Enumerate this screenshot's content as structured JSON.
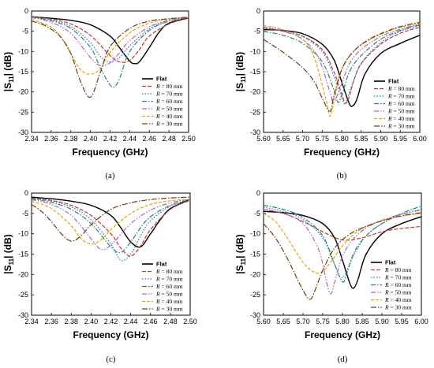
{
  "colors": {
    "Flat": "#000000",
    "R = 80 mm": "#c0392b",
    "R = 70 mm": "#2f6fd1",
    "R = 60 mm": "#1f8a6a",
    "R = 50 mm": "#b05fd6",
    "R = 40 mm": "#e0a800",
    "R = 30 mm": "#6b3e12"
  },
  "chart_data": [
    {
      "type": "line",
      "caption": "(a)",
      "xlabel": "Frequency (GHz)",
      "ylabel": "|S11| (dB)",
      "xlim": [
        2.34,
        2.5
      ],
      "ylim": [
        -30,
        0
      ],
      "xticks": [
        "2.34",
        "2.36",
        "2.38",
        "2.40",
        "2.42",
        "2.44",
        "2.46",
        "2.48",
        "2.50"
      ],
      "yticks": [
        "0",
        "-5",
        "-10",
        "-15",
        "-20",
        "-25",
        "-30"
      ],
      "legend_position": "right",
      "series": [
        {
          "name": "Flat",
          "x": [
            2.34,
            2.36,
            2.38,
            2.4,
            2.42,
            2.43,
            2.44,
            2.445,
            2.45,
            2.46,
            2.47,
            2.48,
            2.5
          ],
          "y": [
            -1.4,
            -1.8,
            -2.3,
            -3.4,
            -6.2,
            -9.2,
            -12.4,
            -13.0,
            -12.5,
            -9.0,
            -5.2,
            -3.0,
            -1.7
          ]
        },
        {
          "name": "R = 80 mm",
          "x": [
            2.34,
            2.36,
            2.38,
            2.4,
            2.42,
            2.43,
            2.44,
            2.45,
            2.46,
            2.48,
            2.5
          ],
          "y": [
            -1.4,
            -2.0,
            -3.2,
            -6.0,
            -11.0,
            -12.6,
            -12.2,
            -9.5,
            -6.2,
            -3.2,
            -1.8
          ]
        },
        {
          "name": "R = 70 mm",
          "x": [
            2.34,
            2.36,
            2.38,
            2.4,
            2.41,
            2.42,
            2.43,
            2.44,
            2.46,
            2.48,
            2.5
          ],
          "y": [
            -1.5,
            -2.2,
            -3.8,
            -7.8,
            -11.2,
            -12.6,
            -11.4,
            -8.6,
            -4.4,
            -2.4,
            -1.6
          ]
        },
        {
          "name": "R = 60 mm",
          "x": [
            2.34,
            2.36,
            2.38,
            2.4,
            2.41,
            2.42,
            2.425,
            2.43,
            2.44,
            2.46,
            2.48,
            2.5
          ],
          "y": [
            -1.5,
            -2.4,
            -4.3,
            -9.0,
            -14.0,
            -18.3,
            -18.6,
            -16.5,
            -10.0,
            -4.8,
            -2.5,
            -1.6
          ]
        },
        {
          "name": "R = 50 mm",
          "x": [
            2.34,
            2.36,
            2.38,
            2.4,
            2.41,
            2.42,
            2.43,
            2.44,
            2.46,
            2.48,
            2.5
          ],
          "y": [
            -1.6,
            -2.8,
            -5.5,
            -11.5,
            -13.5,
            -12.8,
            -10.2,
            -7.3,
            -3.9,
            -2.3,
            -1.6
          ]
        },
        {
          "name": "R = 40 mm",
          "x": [
            2.34,
            2.36,
            2.37,
            2.38,
            2.39,
            2.4,
            2.41,
            2.42,
            2.44,
            2.46,
            2.48,
            2.5
          ],
          "y": [
            -2.0,
            -4.0,
            -6.5,
            -10.5,
            -14.5,
            -15.6,
            -14.3,
            -10.2,
            -5.4,
            -3.0,
            -2.0,
            -1.6
          ]
        },
        {
          "name": "R = 30 mm",
          "x": [
            2.34,
            2.35,
            2.36,
            2.37,
            2.38,
            2.39,
            2.4,
            2.41,
            2.42,
            2.44,
            2.46,
            2.48,
            2.5
          ],
          "y": [
            -2.5,
            -3.2,
            -4.5,
            -6.5,
            -10.5,
            -17.5,
            -21.3,
            -15.2,
            -8.8,
            -4.3,
            -2.5,
            -1.9,
            -1.5
          ]
        }
      ]
    },
    {
      "type": "line",
      "caption": "(b)",
      "xlabel": "Frequency (GHz)",
      "ylabel": "|S11| (dB)",
      "xlim": [
        5.6,
        6.0
      ],
      "ylim": [
        -30,
        0
      ],
      "xticks": [
        "5.60",
        "5.65",
        "5.70",
        "5.75",
        "5.80",
        "5.85",
        "5.90",
        "5.95",
        "6.00"
      ],
      "yticks": [
        "0",
        "-5",
        "-10",
        "-15",
        "-20",
        "-25",
        "-30"
      ],
      "legend_position": "right",
      "series": [
        {
          "name": "Flat",
          "x": [
            5.6,
            5.65,
            5.7,
            5.75,
            5.78,
            5.8,
            5.82,
            5.83,
            5.84,
            5.86,
            5.9,
            5.95,
            6.0
          ],
          "y": [
            -4.6,
            -4.8,
            -5.6,
            -8.2,
            -12.0,
            -17.5,
            -23.0,
            -23.3,
            -21.5,
            -15.5,
            -10.5,
            -8.0,
            -6.0
          ]
        },
        {
          "name": "R = 80 mm",
          "x": [
            5.6,
            5.65,
            5.7,
            5.75,
            5.78,
            5.8,
            5.81,
            5.82,
            5.83,
            5.85,
            5.9,
            5.95,
            6.0
          ],
          "y": [
            -4.2,
            -5.0,
            -6.2,
            -9.5,
            -15.0,
            -20.5,
            -22.8,
            -21.0,
            -17.5,
            -13.0,
            -8.2,
            -5.5,
            -4.0
          ]
        },
        {
          "name": "R = 70 mm",
          "x": [
            5.6,
            5.65,
            5.7,
            5.75,
            5.78,
            5.8,
            5.81,
            5.82,
            5.85,
            5.9,
            5.95,
            6.0
          ],
          "y": [
            -4.0,
            -4.8,
            -6.3,
            -10.0,
            -16.0,
            -21.5,
            -23.0,
            -20.0,
            -13.0,
            -7.8,
            -5.0,
            -3.6
          ]
        },
        {
          "name": "R = 60 mm",
          "x": [
            5.6,
            5.65,
            5.7,
            5.75,
            5.78,
            5.79,
            5.8,
            5.82,
            5.85,
            5.9,
            5.95,
            6.0
          ],
          "y": [
            -5.0,
            -6.0,
            -8.0,
            -12.5,
            -19.5,
            -22.5,
            -21.0,
            -15.0,
            -11.0,
            -7.0,
            -4.8,
            -3.4
          ]
        },
        {
          "name": "R = 50 mm",
          "x": [
            5.6,
            5.65,
            5.7,
            5.74,
            5.77,
            5.78,
            5.8,
            5.82,
            5.85,
            5.9,
            5.95,
            6.0
          ],
          "y": [
            -4.0,
            -5.0,
            -7.0,
            -11.5,
            -20.0,
            -22.5,
            -18.0,
            -13.0,
            -9.5,
            -6.3,
            -4.5,
            -3.2
          ]
        },
        {
          "name": "R = 40 mm",
          "x": [
            5.6,
            5.65,
            5.7,
            5.73,
            5.76,
            5.77,
            5.78,
            5.8,
            5.83,
            5.87,
            5.92,
            5.96,
            6.0
          ],
          "y": [
            -3.6,
            -4.6,
            -7.0,
            -11.5,
            -22.0,
            -26.0,
            -22.5,
            -14.5,
            -10.0,
            -7.2,
            -5.0,
            -3.8,
            -3.0
          ]
        },
        {
          "name": "R = 30 mm",
          "x": [
            5.6,
            5.65,
            5.7,
            5.73,
            5.75,
            5.77,
            5.78,
            5.8,
            5.83,
            5.87,
            5.92,
            5.96,
            6.0
          ],
          "y": [
            -7.0,
            -10.2,
            -14.0,
            -17.5,
            -21.5,
            -24.8,
            -21.0,
            -14.5,
            -10.0,
            -7.0,
            -4.8,
            -3.6,
            -2.8
          ]
        }
      ]
    },
    {
      "type": "line",
      "caption": "(c)",
      "xlabel": "Frequency (GHz)",
      "ylabel": "|S11| (dB)",
      "xlim": [
        2.34,
        2.5
      ],
      "ylim": [
        -30,
        0
      ],
      "xticks": [
        "2.34",
        "2.36",
        "2.38",
        "2.40",
        "2.42",
        "2.44",
        "2.46",
        "2.48",
        "2.50"
      ],
      "yticks": [
        "0",
        "-5",
        "-10",
        "-15",
        "-20",
        "-25",
        "-30"
      ],
      "legend_position": "right",
      "series": [
        {
          "name": "Flat",
          "x": [
            2.34,
            2.36,
            2.38,
            2.4,
            2.42,
            2.43,
            2.44,
            2.45,
            2.46,
            2.47,
            2.48,
            2.5
          ],
          "y": [
            -1.0,
            -1.4,
            -2.0,
            -3.0,
            -5.5,
            -8.5,
            -12.0,
            -13.2,
            -10.0,
            -6.5,
            -3.8,
            -1.5
          ]
        },
        {
          "name": "R = 80 mm",
          "x": [
            2.34,
            2.36,
            2.38,
            2.4,
            2.42,
            2.43,
            2.44,
            2.45,
            2.46,
            2.48,
            2.5
          ],
          "y": [
            -1.2,
            -1.8,
            -3.0,
            -5.5,
            -10.0,
            -13.5,
            -15.5,
            -13.0,
            -9.0,
            -4.0,
            -1.8
          ]
        },
        {
          "name": "R = 70 mm",
          "x": [
            2.34,
            2.36,
            2.38,
            2.4,
            2.42,
            2.43,
            2.44,
            2.45,
            2.46,
            2.48,
            2.5
          ],
          "y": [
            -1.3,
            -2.0,
            -3.4,
            -6.5,
            -12.5,
            -16.5,
            -15.0,
            -10.5,
            -6.8,
            -3.2,
            -1.6
          ]
        },
        {
          "name": "R = 60 mm",
          "x": [
            2.34,
            2.36,
            2.38,
            2.4,
            2.42,
            2.43,
            2.44,
            2.45,
            2.46,
            2.48,
            2.5
          ],
          "y": [
            -1.4,
            -2.3,
            -4.0,
            -7.5,
            -13.2,
            -14.6,
            -12.0,
            -8.5,
            -5.8,
            -3.0,
            -1.6
          ]
        },
        {
          "name": "R = 50 mm",
          "x": [
            2.34,
            2.36,
            2.38,
            2.4,
            2.41,
            2.42,
            2.44,
            2.46,
            2.48,
            2.5
          ],
          "y": [
            -1.6,
            -2.8,
            -5.5,
            -11.2,
            -13.8,
            -12.8,
            -7.5,
            -4.2,
            -2.4,
            -1.5
          ]
        },
        {
          "name": "R = 40 mm",
          "x": [
            2.34,
            2.36,
            2.38,
            2.39,
            2.4,
            2.41,
            2.42,
            2.44,
            2.46,
            2.48,
            2.5
          ],
          "y": [
            -2.0,
            -3.8,
            -8.0,
            -11.2,
            -12.5,
            -11.5,
            -9.0,
            -5.0,
            -2.8,
            -1.9,
            -1.5
          ]
        },
        {
          "name": "R = 30 mm",
          "x": [
            2.34,
            2.35,
            2.36,
            2.37,
            2.38,
            2.39,
            2.4,
            2.42,
            2.44,
            2.46,
            2.48,
            2.5
          ],
          "y": [
            -2.8,
            -4.5,
            -7.0,
            -10.0,
            -11.8,
            -10.5,
            -7.8,
            -4.0,
            -2.4,
            -1.6,
            -1.2,
            -1.0
          ]
        }
      ]
    },
    {
      "type": "line",
      "caption": "(d)",
      "xlabel": "Frequency (GHz)",
      "ylabel": "|S11| (dB)",
      "xlim": [
        5.6,
        6.0
      ],
      "ylim": [
        -30,
        0
      ],
      "xticks": [
        "5.60",
        "5.65",
        "5.70",
        "5.75",
        "5.80",
        "5.85",
        "5.90",
        "5.95",
        "6.00"
      ],
      "yticks": [
        "0",
        "-5",
        "-10",
        "-15",
        "-20",
        "-25",
        "-30"
      ],
      "legend_position": "right",
      "series": [
        {
          "name": "Flat",
          "x": [
            5.6,
            5.65,
            5.7,
            5.75,
            5.78,
            5.8,
            5.82,
            5.83,
            5.84,
            5.86,
            5.9,
            5.95,
            6.0
          ],
          "y": [
            -4.5,
            -4.8,
            -5.5,
            -7.5,
            -11.0,
            -16.5,
            -22.5,
            -23.2,
            -21.0,
            -15.0,
            -10.0,
            -7.5,
            -5.8
          ]
        },
        {
          "name": "R = 80 mm",
          "x": [
            5.6,
            5.65,
            5.7,
            5.75,
            5.8,
            5.85,
            5.9,
            5.95,
            6.0
          ],
          "y": [
            -4.0,
            -5.0,
            -7.0,
            -9.5,
            -11.5,
            -11.0,
            -9.5,
            -8.7,
            -8.2
          ]
        },
        {
          "name": "R = 70 mm",
          "x": [
            5.6,
            5.65,
            5.7,
            5.75,
            5.78,
            5.8,
            5.83,
            5.86,
            5.9,
            5.95,
            6.0
          ],
          "y": [
            -3.5,
            -4.5,
            -6.5,
            -11.0,
            -17.5,
            -20.8,
            -15.0,
            -10.5,
            -7.5,
            -5.2,
            -4.0
          ]
        },
        {
          "name": "R = 60 mm",
          "x": [
            5.6,
            5.65,
            5.7,
            5.75,
            5.78,
            5.8,
            5.81,
            5.83,
            5.86,
            5.9,
            5.95,
            6.0
          ],
          "y": [
            -3.0,
            -4.0,
            -6.0,
            -10.5,
            -17.5,
            -21.8,
            -20.0,
            -14.5,
            -10.5,
            -7.5,
            -5.0,
            -3.2
          ]
        },
        {
          "name": "R = 50 mm",
          "x": [
            5.6,
            5.65,
            5.7,
            5.74,
            5.76,
            5.77,
            5.78,
            5.8,
            5.83,
            5.87,
            5.92,
            5.96,
            6.0
          ],
          "y": [
            -4.0,
            -5.0,
            -7.5,
            -14.0,
            -22.0,
            -24.8,
            -22.0,
            -15.5,
            -11.0,
            -8.0,
            -6.0,
            -5.0,
            -4.2
          ]
        },
        {
          "name": "R = 40 mm",
          "x": [
            5.6,
            5.63,
            5.66,
            5.7,
            5.73,
            5.75,
            5.77,
            5.8,
            5.83,
            5.87,
            5.92,
            5.96,
            6.0
          ],
          "y": [
            -5.0,
            -7.0,
            -11.0,
            -17.0,
            -19.5,
            -19.2,
            -17.0,
            -13.0,
            -10.0,
            -7.8,
            -6.2,
            -5.5,
            -5.0
          ]
        },
        {
          "name": "R = 30 mm",
          "x": [
            5.6,
            5.63,
            5.66,
            5.69,
            5.71,
            5.72,
            5.73,
            5.75,
            5.78,
            5.82,
            5.87,
            5.92,
            5.96,
            6.0
          ],
          "y": [
            -7.5,
            -11.0,
            -16.0,
            -22.0,
            -25.5,
            -26.0,
            -24.0,
            -19.0,
            -13.5,
            -10.0,
            -7.8,
            -6.3,
            -5.4,
            -4.8
          ]
        }
      ]
    }
  ]
}
